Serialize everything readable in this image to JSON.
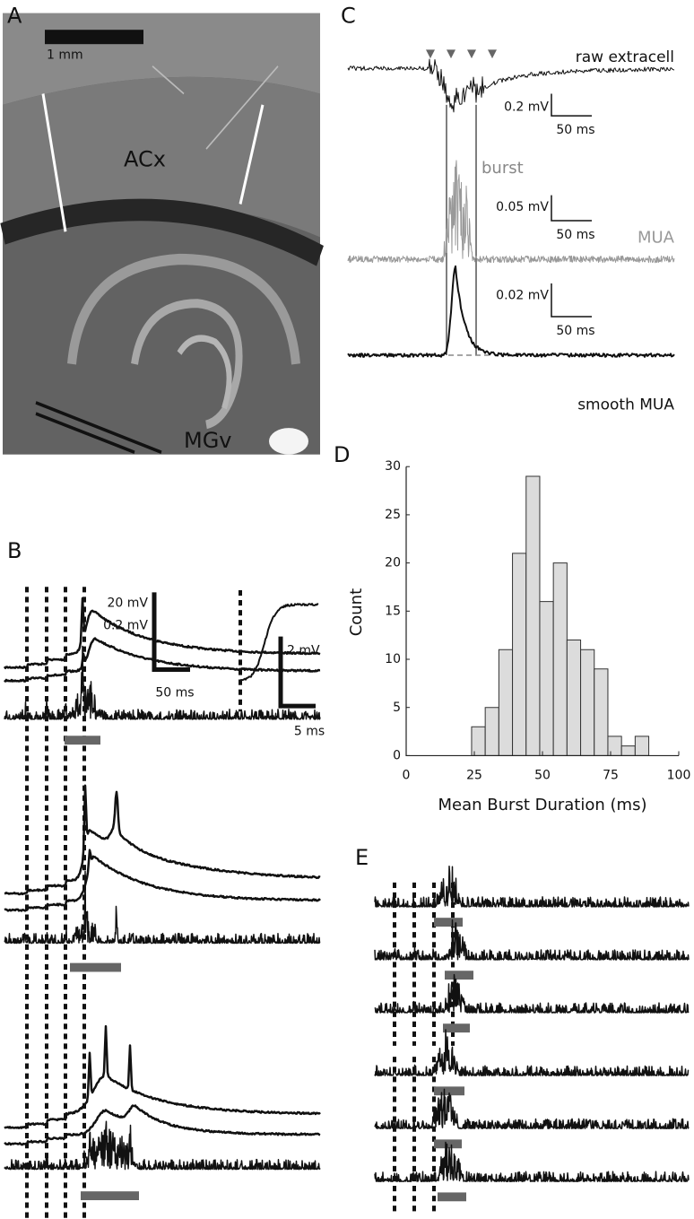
{
  "panels": {
    "A": {
      "label": "A",
      "scale_bar": "1 mm",
      "regions": [
        "ACx",
        "MGv"
      ]
    },
    "B": {
      "label": "B",
      "scale_voltage": [
        "20 mV",
        "0.2 mV"
      ],
      "scale_time": "50 ms",
      "inset_voltage": "2 mV",
      "inset_time": "5 ms"
    },
    "C": {
      "label": "C",
      "traces": [
        {
          "name": "raw extracell",
          "voltage": "0.2 mV",
          "time": "50 ms"
        },
        {
          "name": "MUA",
          "annotation": "burst",
          "voltage": "0.05 mV",
          "time": "50 ms"
        },
        {
          "name": "smooth MUA",
          "voltage": "0.02 mV",
          "time": "50 ms"
        }
      ]
    },
    "D": {
      "label": "D"
    },
    "E": {
      "label": "E"
    }
  },
  "chart_data": {
    "type": "histogram",
    "xlabel": "Mean Burst Duration (ms)",
    "ylabel": "Count",
    "bins": [
      24,
      29,
      34,
      39,
      44,
      49,
      54,
      59,
      64,
      69,
      74,
      79,
      84,
      89
    ],
    "values": [
      3,
      5,
      11,
      21,
      29,
      16,
      20,
      12,
      11,
      9,
      2,
      1,
      2
    ],
    "color": "#dcdcdc",
    "xlim": [
      0,
      100
    ],
    "ylim": [
      0,
      30
    ],
    "xticks": [
      0,
      25,
      50,
      75,
      100
    ],
    "yticks": [
      0,
      5,
      10,
      15,
      20,
      25,
      30
    ]
  }
}
